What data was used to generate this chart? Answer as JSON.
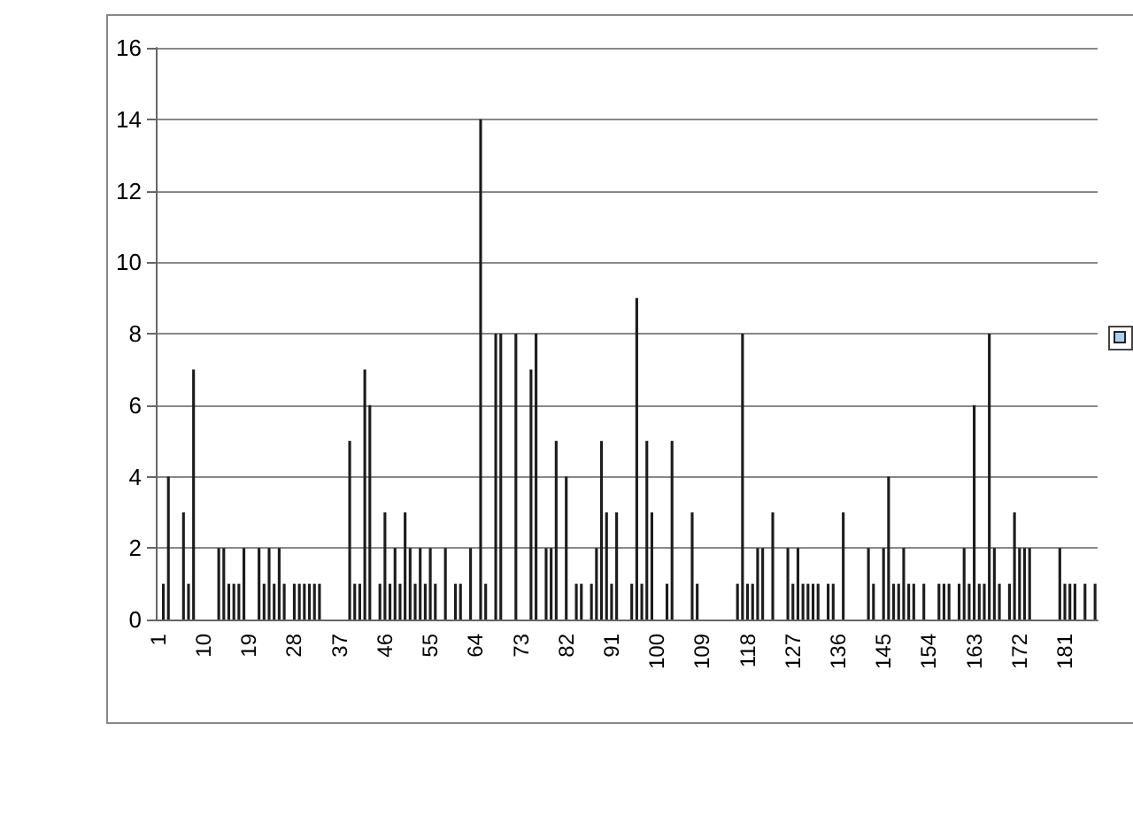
{
  "chart_data": {
    "type": "bar",
    "categories": [
      "1",
      null,
      null,
      null,
      null,
      null,
      null,
      null,
      null,
      "10",
      null,
      null,
      null,
      null,
      null,
      null,
      null,
      null,
      "19",
      null,
      null,
      null,
      null,
      null,
      null,
      null,
      null,
      "28",
      null,
      null,
      null,
      null,
      null,
      null,
      null,
      null,
      "37",
      null,
      null,
      null,
      null,
      null,
      null,
      null,
      null,
      "46",
      null,
      null,
      null,
      null,
      null,
      null,
      null,
      null,
      "55",
      null,
      null,
      null,
      null,
      null,
      null,
      null,
      null,
      "64",
      null,
      null,
      null,
      null,
      null,
      null,
      null,
      null,
      "73",
      null,
      null,
      null,
      null,
      null,
      null,
      null,
      null,
      "82",
      null,
      null,
      null,
      null,
      null,
      null,
      null,
      null,
      "91",
      null,
      null,
      null,
      null,
      null,
      null,
      null,
      null,
      "100",
      null,
      null,
      null,
      null,
      null,
      null,
      null,
      null,
      "109",
      null,
      null,
      null,
      null,
      null,
      null,
      null,
      null,
      "118",
      null,
      null,
      null,
      null,
      null,
      null,
      null,
      null,
      "127",
      null,
      null,
      null,
      null,
      null,
      null,
      null,
      null,
      "136",
      null,
      null,
      null,
      null,
      null,
      null,
      null,
      null,
      "145",
      null,
      null,
      null,
      null,
      null,
      null,
      null,
      null,
      "154",
      null,
      null,
      null,
      null,
      null,
      null,
      null,
      null,
      "163",
      null,
      null,
      null,
      null,
      null,
      null,
      null,
      null,
      "172",
      null,
      null,
      null,
      null,
      null,
      null,
      null,
      null,
      "181",
      null,
      null,
      null,
      null,
      null,
      null
    ],
    "series": [
      {
        "color": "#1c1c1c",
        "values": [
          0,
          1,
          4,
          0,
          0,
          3,
          1,
          7,
          0,
          0,
          0,
          0,
          2,
          2,
          1,
          1,
          1,
          2,
          0,
          0,
          2,
          1,
          2,
          1,
          2,
          1,
          0,
          1,
          1,
          1,
          1,
          1,
          1,
          0,
          0,
          0,
          0,
          0,
          5,
          1,
          1,
          7,
          6,
          0,
          1,
          3,
          1,
          2,
          1,
          3,
          2,
          1,
          2,
          1,
          2,
          1,
          0,
          2,
          0,
          1,
          1,
          0,
          2,
          0,
          14,
          1,
          0,
          8,
          8,
          0,
          0,
          8,
          0,
          0,
          7,
          8,
          0,
          2,
          2,
          5,
          0,
          4,
          0,
          1,
          1,
          0,
          1,
          2,
          5,
          3,
          1,
          3,
          0,
          0,
          1,
          9,
          1,
          5,
          3,
          0,
          0,
          1,
          5,
          0,
          0,
          0,
          3,
          1,
          0,
          0,
          0,
          0,
          0,
          0,
          0,
          1,
          8,
          1,
          1,
          2,
          2,
          0,
          3,
          0,
          0,
          2,
          1,
          2,
          1,
          1,
          1,
          1,
          0,
          1,
          1,
          0,
          3,
          0,
          0,
          0,
          0,
          2,
          1,
          0,
          2,
          4,
          1,
          1,
          2,
          1,
          1,
          0,
          1,
          0,
          0,
          1,
          1,
          1,
          0,
          1,
          2,
          1,
          6,
          1,
          1,
          8,
          2,
          1,
          0,
          1,
          3,
          2,
          2,
          2,
          0,
          0,
          0,
          0,
          0,
          2,
          1,
          1,
          1,
          0,
          1,
          0,
          1
        ]
      }
    ],
    "ylim": [
      0,
      16
    ],
    "yticks": [
      0,
      2,
      4,
      6,
      8,
      10,
      12,
      14,
      16
    ],
    "grid": "y"
  }
}
